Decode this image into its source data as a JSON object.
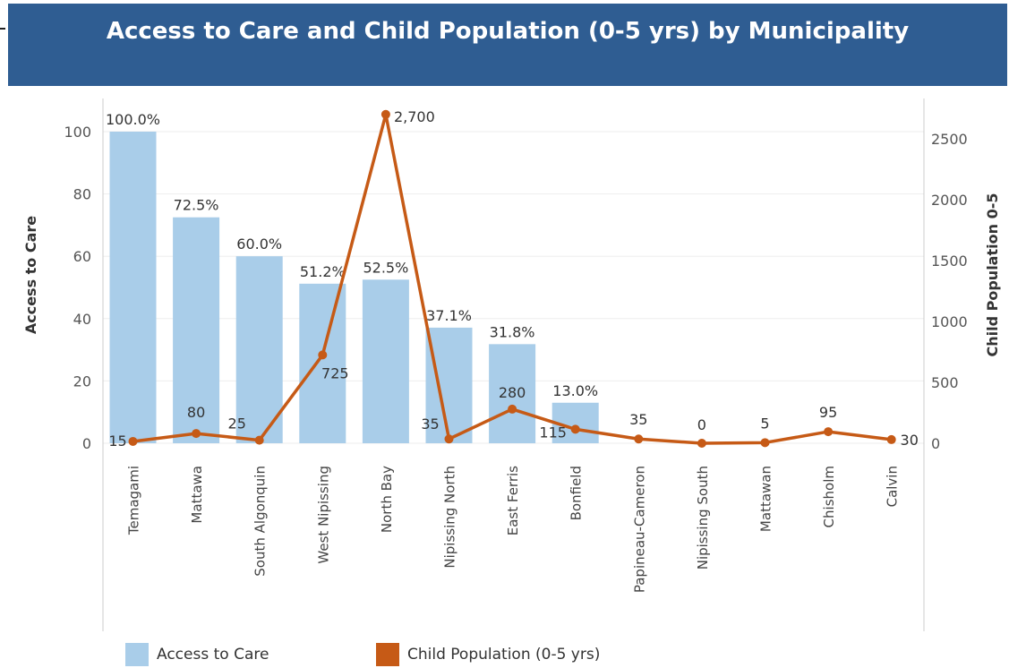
{
  "title": "Access to Care and Child Population (0-5 yrs) by Municipality",
  "colors": {
    "header_bg": "#2f5d92",
    "bar": "#a9cde9",
    "line": "#c65a16",
    "axis": "#cccccc",
    "grid": "#eeeeee",
    "text": "#333333"
  },
  "chart_data": {
    "type": "bar-line combo",
    "categories": [
      "Temagami",
      "Mattawa",
      "South Algonquin",
      "West Nipissing",
      "North Bay",
      "Nipissing North",
      "East Ferris",
      "Bonfield",
      "Papineau-Cameron",
      "Nipissing South",
      "Mattawan",
      "Chisholm",
      "Calvin"
    ],
    "series": [
      {
        "name": "Access to Care",
        "type": "bar",
        "axis": "left",
        "values": [
          100.0,
          72.5,
          60.0,
          51.2,
          52.5,
          37.1,
          31.8,
          13.0,
          null,
          null,
          null,
          null,
          null
        ],
        "labels": [
          "100.0%",
          "72.5%",
          "60.0%",
          "51.2%",
          "52.5%",
          "37.1%",
          "31.8%",
          "13.0%",
          "",
          "",
          "",
          "",
          ""
        ]
      },
      {
        "name": "Child Population (0-5 yrs)",
        "type": "line",
        "axis": "right",
        "values": [
          15,
          80,
          25,
          725,
          2700,
          35,
          280,
          115,
          35,
          0,
          5,
          95,
          30
        ],
        "labels": [
          "15",
          "80",
          "25",
          "725",
          "2,700",
          "35",
          "280",
          "115",
          "35",
          "0",
          "5",
          "95",
          "30"
        ]
      }
    ],
    "y_left": {
      "label": "Access to Care",
      "range": [
        0,
        100
      ],
      "ticks": [
        0,
        20,
        40,
        60,
        80,
        100
      ]
    },
    "y_right": {
      "label": "Child Population 0-5",
      "range": [
        0,
        2500
      ],
      "ticks": [
        0,
        500,
        1000,
        1500,
        2000,
        2500
      ]
    },
    "grid": true,
    "legend_position": "bottom"
  },
  "legend": [
    {
      "label": "Access to Care",
      "color": "#a9cde9"
    },
    {
      "label": "Child Population (0-5 yrs)",
      "color": "#c65a16"
    }
  ]
}
